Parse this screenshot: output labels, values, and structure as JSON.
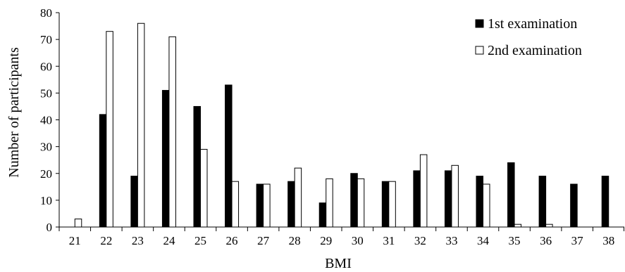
{
  "chart_data": {
    "type": "bar",
    "title": "",
    "xlabel": "BMI",
    "ylabel": "Number of participants",
    "ylim": [
      0,
      80
    ],
    "yticks": [
      0,
      10,
      20,
      30,
      40,
      50,
      60,
      70,
      80
    ],
    "grid": false,
    "legend_position": "top-right",
    "categories": [
      "21",
      "22",
      "23",
      "24",
      "25",
      "26",
      "27",
      "28",
      "29",
      "30",
      "31",
      "32",
      "33",
      "34",
      "35",
      "36",
      "37",
      "38"
    ],
    "series": [
      {
        "name": "1st examination",
        "color": "#000000",
        "values": [
          0,
          42,
          19,
          51,
          45,
          53,
          16,
          17,
          9,
          20,
          17,
          21,
          21,
          19,
          24,
          19,
          16,
          19
        ]
      },
      {
        "name": "2nd examination",
        "color": "#ffffff",
        "values": [
          3,
          73,
          76,
          71,
          29,
          17,
          16,
          22,
          18,
          18,
          17,
          27,
          23,
          16,
          1,
          1,
          0,
          0
        ]
      }
    ]
  }
}
